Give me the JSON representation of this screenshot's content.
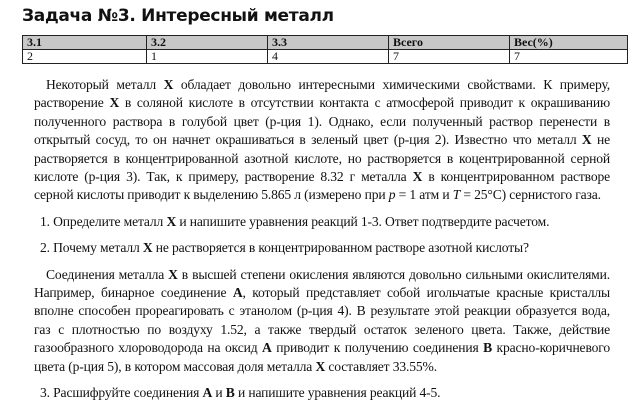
{
  "title": "Задача №3. Интересный металл",
  "score_table": {
    "headers": [
      "3.1",
      "3.2",
      "3.3",
      "Всего",
      "Вес(%)"
    ],
    "values": [
      "2",
      "1",
      "4",
      "7",
      "7"
    ]
  },
  "paragraph1": [
    {
      "t": "Некоторый металл "
    },
    {
      "t": "X",
      "s": "b"
    },
    {
      "t": " обладает довольно интересными химическими свойствами. К примеру, растворение "
    },
    {
      "t": "X",
      "s": "b"
    },
    {
      "t": " в соляной кислоте в отсутствии контакта с атмосферой приводит к окрашиванию полученного раствора в голубой цвет (р-ция 1). Однако, если полученный раствор перенести в открытый сосуд, то он начнет окрашиваться в зеленый цвет (р-ция 2). Известно что металл "
    },
    {
      "t": "X",
      "s": "b"
    },
    {
      "t": " не растворяется в концентрированной азотной кислоте, но растворяется в коцентрированной серной кислоте (р-ция 3). Так, к примеру, растворение 8.32 г металла "
    },
    {
      "t": "X",
      "s": "b"
    },
    {
      "t": " в концентрированном растворе серной кислоты приводит к выделению 5.865 л (измерено при "
    },
    {
      "t": "p",
      "s": "i"
    },
    {
      "t": " = 1 атм и "
    },
    {
      "t": "T",
      "s": "i"
    },
    {
      "t": " = 25°C) сернистого газа."
    }
  ],
  "question1": [
    {
      "t": "1.  Определите металл "
    },
    {
      "t": "X",
      "s": "b"
    },
    {
      "t": " и напишите уравнения реакций 1-3. Ответ подтвердите расчетом."
    }
  ],
  "question2": [
    {
      "t": "2.  Почему металл "
    },
    {
      "t": "X",
      "s": "b"
    },
    {
      "t": " не растворяется в концентрированном растворе азотной кислоты?"
    }
  ],
  "paragraph2": [
    {
      "t": "Соединения металла "
    },
    {
      "t": "X",
      "s": "b"
    },
    {
      "t": " в высшей степени окисления являются довольно сильными окислителями. Например, бинарное соединение "
    },
    {
      "t": "A",
      "s": "b"
    },
    {
      "t": ", который представляет собой игольчатые красные кристаллы вполне способен прореагировать с этанолом (р-ция 4). В результате этой реакции образуется вода, газ с плотностью по воздуху 1.52, а также твердый остаток зеленого цвета. Также, действие газообразного хлороводорода на оксид "
    },
    {
      "t": "A",
      "s": "b"
    },
    {
      "t": " приводит к получению соединения "
    },
    {
      "t": "B",
      "s": "b"
    },
    {
      "t": " красно-коричневого цвета (р-ция 5), в котором массовая доля металла "
    },
    {
      "t": "X",
      "s": "b"
    },
    {
      "t": " составляет 33.55%."
    }
  ],
  "question3": [
    {
      "t": "3.  Расшифруйте соединения "
    },
    {
      "t": "A",
      "s": "b"
    },
    {
      "t": " и "
    },
    {
      "t": "B",
      "s": "b"
    },
    {
      "t": " и напишите уравнения реакций 4-5."
    }
  ]
}
